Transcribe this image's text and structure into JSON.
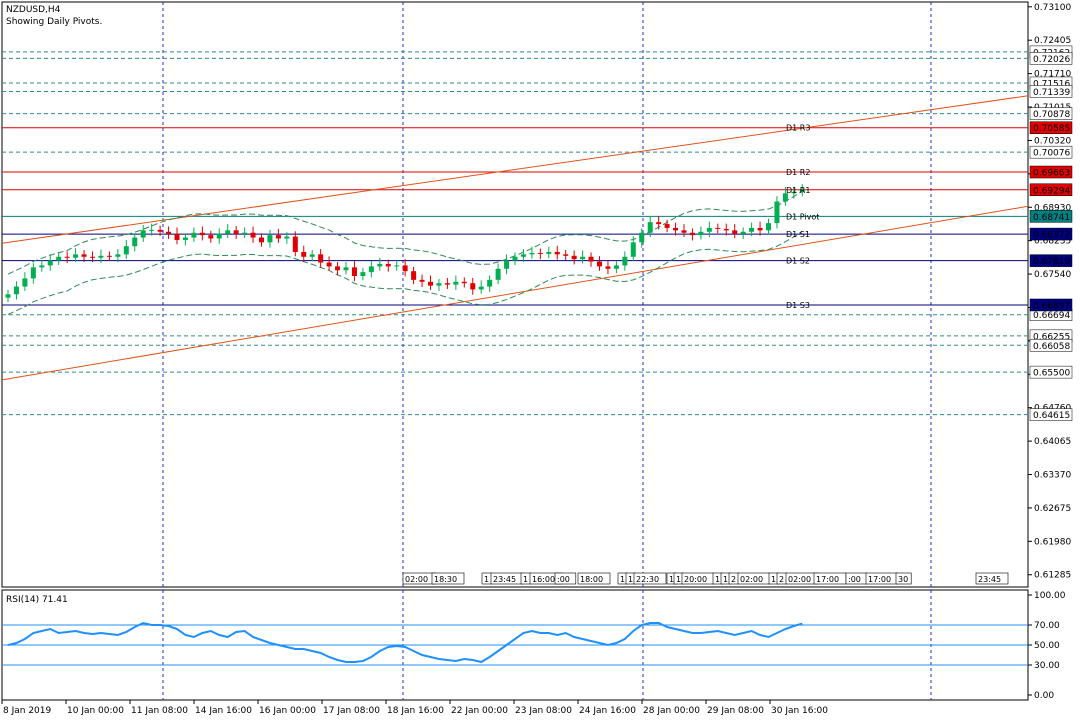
{
  "window": {
    "symbol_title": "NZDUSD,H4",
    "subtitle": "Showing Daily Pivots."
  },
  "colors": {
    "bull": "#00b050",
    "bear": "#e00000",
    "grid_vertical": "#1f2fd0",
    "pivot_line": "#008080",
    "resistance_line": "#e00000",
    "support_line": "#000080",
    "level_dashed": "#2e8b8b",
    "trend_line": "#e0531a",
    "envelope": "#2e8b57",
    "rsi_line": "#1e90ff",
    "rsi_level": "#1e90ff"
  },
  "chart_data": [
    {
      "type": "candlestick",
      "name": "NZDUSD H4 price",
      "ylim": [
        0.6103,
        0.732
      ],
      "price_ticks": [
        "0.73100",
        "0.72405",
        "0.71710",
        "0.71015",
        "0.70320",
        "0.69625",
        "0.68930",
        "0.68235",
        "0.67540",
        "0.66845",
        "0.66150",
        "0.65455",
        "0.64760",
        "0.64065",
        "0.63370",
        "0.62675",
        "0.61980",
        "0.61285"
      ],
      "time_labels": [
        "8 Jan 2019",
        "10 Jan 00:00",
        "11 Jan 08:00",
        "14 Jan 16:00",
        "16 Jan 00:00",
        "17 Jan 08:00",
        "18 Jan 16:00",
        "22 Jan 00:00",
        "23 Jan 08:00",
        "24 Jan 16:00",
        "28 Jan 00:00",
        "29 Jan 08:00",
        "30 Jan 16:00"
      ],
      "close_prices": [
        0.6712,
        0.6728,
        0.6745,
        0.6768,
        0.6772,
        0.6782,
        0.679,
        0.6788,
        0.6795,
        0.679,
        0.6788,
        0.6792,
        0.679,
        0.6795,
        0.6812,
        0.683,
        0.6845,
        0.6846,
        0.6842,
        0.6838,
        0.6825,
        0.683,
        0.684,
        0.6835,
        0.6828,
        0.6838,
        0.6845,
        0.6838,
        0.684,
        0.683,
        0.682,
        0.6835,
        0.6828,
        0.6832,
        0.68,
        0.679,
        0.6795,
        0.6778,
        0.677,
        0.6762,
        0.6768,
        0.675,
        0.6758,
        0.677,
        0.6775,
        0.677,
        0.6772,
        0.676,
        0.6742,
        0.6738,
        0.673,
        0.6735,
        0.6732,
        0.6738,
        0.6735,
        0.6722,
        0.6728,
        0.6742,
        0.6765,
        0.6782,
        0.679,
        0.6795,
        0.6798,
        0.6796,
        0.68,
        0.6795,
        0.6792,
        0.6785,
        0.679,
        0.678,
        0.677,
        0.6765,
        0.6772,
        0.679,
        0.682,
        0.684,
        0.6862,
        0.6858,
        0.685,
        0.6845,
        0.684,
        0.6835,
        0.6842,
        0.685,
        0.6848,
        0.6845,
        0.6838,
        0.6842,
        0.685,
        0.6845,
        0.686,
        0.6905,
        0.6922,
        0.6925,
        0.693
      ],
      "trend_lines": [
        {
          "name": "upper channel",
          "start_price": 0.6818,
          "end_price": 0.7125
        },
        {
          "name": "lower channel",
          "start_price": 0.6534,
          "end_price": 0.6895
        }
      ],
      "pivot_levels": [
        {
          "label": "D1 R3",
          "value": 0.70585,
          "tag": "0.70585",
          "kind": "resistance"
        },
        {
          "label": "D1 R2",
          "value": 0.69663,
          "tag": "0.69663",
          "kind": "resistance"
        },
        {
          "label": "D1 R1",
          "value": 0.69294,
          "tag": "0.69294",
          "kind": "resistance"
        },
        {
          "label": "D1 Pivot",
          "value": 0.68741,
          "tag": "0.68741",
          "kind": "pivot"
        },
        {
          "label": "D1 S1",
          "value": 0.68372,
          "tag": "0.68372",
          "kind": "support"
        },
        {
          "label": "D1 S2",
          "value": 0.67819,
          "tag": "0.67819",
          "kind": "support"
        },
        {
          "label": "D1 S3",
          "value": 0.66897,
          "tag": "0.66897",
          "kind": "support"
        }
      ],
      "dashed_levels": [
        "0.72162",
        "0.72026",
        "0.71516",
        "0.71339",
        "0.70878",
        "0.70076",
        "0.66694",
        "0.66255",
        "0.66058",
        "0.65500",
        "0.64615"
      ],
      "session_boxes": [
        "02:00",
        "18:30",
        "1",
        "23:45",
        "1",
        "16:00",
        ":00",
        "18:00",
        "1",
        "1",
        "22:30",
        "1",
        "1",
        "20:00",
        "1",
        "1",
        "2",
        "02:00",
        "1",
        "2",
        "02:00",
        "17:00",
        ":00",
        "17:00",
        "30",
        "23:45"
      ]
    },
    {
      "type": "line",
      "name": "RSI(14)",
      "label": "RSI(14) 71.41",
      "ylim": [
        -5,
        105
      ],
      "y_ticks": [
        "100.00",
        "70.00",
        "50.00",
        "30.00",
        "0.00"
      ],
      "levels": [
        70,
        50,
        30
      ],
      "values": [
        50,
        52,
        56,
        62,
        64,
        66,
        62,
        63,
        64,
        62,
        61,
        62,
        61,
        60,
        63,
        68,
        72,
        70,
        70,
        69,
        66,
        60,
        58,
        62,
        64,
        60,
        58,
        63,
        64,
        58,
        55,
        52,
        50,
        48,
        46,
        46,
        44,
        42,
        38,
        35,
        33,
        33,
        34,
        38,
        44,
        48,
        49,
        48,
        44,
        40,
        38,
        36,
        35,
        34,
        36,
        35,
        33,
        38,
        44,
        50,
        56,
        62,
        64,
        62,
        62,
        60,
        62,
        58,
        56,
        54,
        52,
        50,
        52,
        56,
        64,
        70,
        72,
        72,
        68,
        66,
        64,
        62,
        62,
        63,
        64,
        62,
        60,
        62,
        64,
        60,
        58,
        62,
        66,
        69,
        71.41
      ]
    }
  ]
}
